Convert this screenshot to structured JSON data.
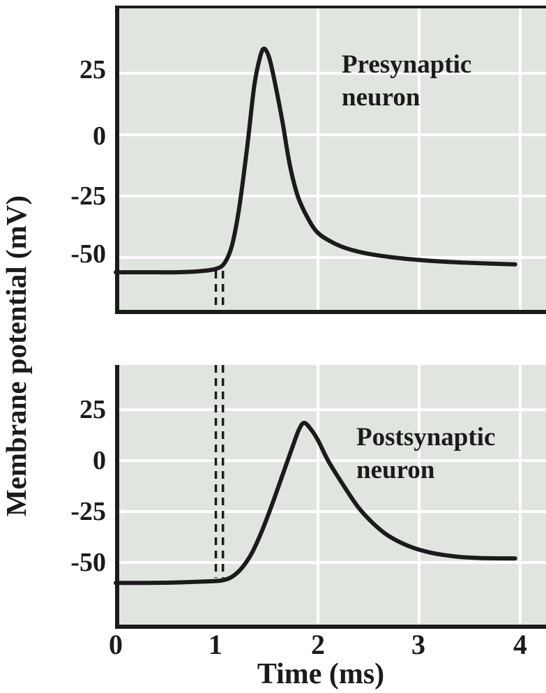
{
  "figure": {
    "y_axis_label": "Membrane potential (mV)",
    "x_axis_label": "Time (ms)"
  },
  "colors": {
    "plot_background": "#e1e5e0",
    "gridline": "#ffffff",
    "curve": "#1b1b1b",
    "axis": "#1b1b1b",
    "text": "#1b1b1b",
    "page_background": "#ffffff"
  },
  "chart_data": [
    {
      "type": "line",
      "title": "Presynaptic neuron",
      "ylabel": "Membrane potential (mV)",
      "xlabel": "Time (ms)",
      "xlim": [
        0,
        4.25
      ],
      "ylim": [
        -73,
        52
      ],
      "x_ticks": [
        0,
        1,
        2,
        3,
        4
      ],
      "y_ticks": [
        25,
        0,
        -25,
        -50
      ],
      "x_gridlines": [
        2,
        3,
        4
      ],
      "y_gridlines": [
        25,
        0,
        -25,
        -50
      ],
      "grid": "on",
      "legend": "none",
      "resting_potential_mV": -56,
      "peak_mV": 35,
      "peak_time_ms": 1.47,
      "dashed_time_markers_ms": [
        0.99,
        1.06
      ],
      "series": [
        {
          "name": "presynaptic membrane potential",
          "points": [
            [
              0,
              -56
            ],
            [
              0.3,
              -56
            ],
            [
              0.6,
              -56
            ],
            [
              0.85,
              -55.5
            ],
            [
              1.0,
              -54.5
            ],
            [
              1.08,
              -52
            ],
            [
              1.15,
              -45
            ],
            [
              1.22,
              -30
            ],
            [
              1.3,
              -5
            ],
            [
              1.37,
              20
            ],
            [
              1.43,
              32
            ],
            [
              1.47,
              35
            ],
            [
              1.52,
              31
            ],
            [
              1.58,
              20
            ],
            [
              1.65,
              5
            ],
            [
              1.72,
              -12
            ],
            [
              1.8,
              -25
            ],
            [
              1.9,
              -34
            ],
            [
              2.0,
              -40
            ],
            [
              2.15,
              -44
            ],
            [
              2.3,
              -46.5
            ],
            [
              2.5,
              -48.5
            ],
            [
              2.75,
              -50
            ],
            [
              3.0,
              -51
            ],
            [
              3.3,
              -51.8
            ],
            [
              3.6,
              -52.3
            ],
            [
              3.95,
              -52.8
            ]
          ]
        }
      ]
    },
    {
      "type": "line",
      "title": "Postsynaptic neuron",
      "ylabel": "Membrane potential (mV)",
      "xlabel": "Time (ms)",
      "xlim": [
        0,
        4.25
      ],
      "ylim": [
        -80,
        47
      ],
      "x_ticks": [
        0,
        1,
        2,
        3,
        4
      ],
      "y_ticks": [
        25,
        0,
        -25,
        -50
      ],
      "x_gridlines": [
        2,
        3,
        4
      ],
      "y_gridlines": [
        25,
        0,
        -25,
        -50
      ],
      "grid": "on",
      "legend": "none",
      "resting_potential_mV": -60,
      "peak_mV": 18.5,
      "peak_time_ms": 1.86,
      "dashed_time_markers_ms": [
        0.99,
        1.06
      ],
      "series": [
        {
          "name": "postsynaptic membrane potential",
          "points": [
            [
              0,
              -60
            ],
            [
              0.3,
              -60
            ],
            [
              0.6,
              -59.8
            ],
            [
              0.9,
              -59.3
            ],
            [
              1.05,
              -58.8
            ],
            [
              1.15,
              -57
            ],
            [
              1.25,
              -52.5
            ],
            [
              1.35,
              -45
            ],
            [
              1.45,
              -34
            ],
            [
              1.55,
              -21
            ],
            [
              1.65,
              -7
            ],
            [
              1.75,
              7
            ],
            [
              1.81,
              15
            ],
            [
              1.86,
              18.5
            ],
            [
              1.92,
              16
            ],
            [
              2.0,
              10
            ],
            [
              2.1,
              0
            ],
            [
              2.25,
              -12
            ],
            [
              2.4,
              -23
            ],
            [
              2.55,
              -31
            ],
            [
              2.7,
              -37
            ],
            [
              2.9,
              -42
            ],
            [
              3.1,
              -45
            ],
            [
              3.35,
              -47
            ],
            [
              3.6,
              -47.8
            ],
            [
              3.95,
              -48
            ]
          ]
        }
      ]
    }
  ]
}
